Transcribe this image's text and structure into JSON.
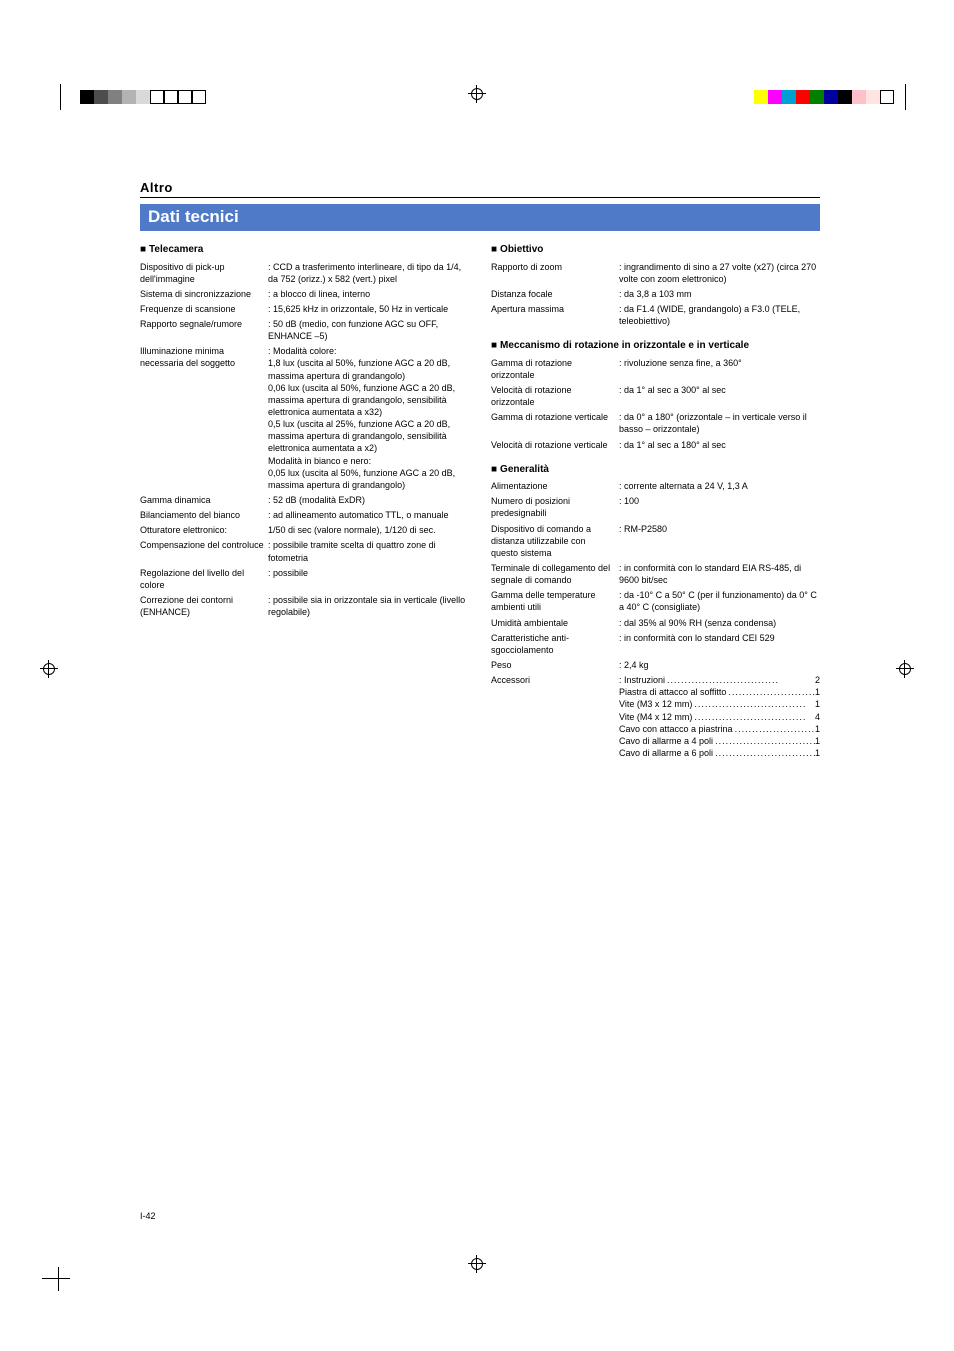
{
  "breadcrumb": "Altro",
  "title": "Dati tecnici",
  "page_number": "I-42",
  "top_left_marks": [
    "#000000",
    "#4d4d4d",
    "#808080",
    "#b3b3b3",
    "#d9d9d9",
    "#ffffff",
    "#ffffff",
    "#ffffff",
    "#ffffff"
  ],
  "top_right_marks": [
    "#ffff00",
    "#ff00ff",
    "#00a0d2",
    "#ff0000",
    "#008000",
    "#0000a0",
    "#000000",
    "#ffc0cb",
    "#ffe4e1",
    "#ffffff"
  ],
  "sections": {
    "telecamera": {
      "head": "Telecamera",
      "rows": [
        {
          "label": "Dispositivo di pick-up dell'immagine",
          "value": "CCD a trasferimento interlineare, di tipo da 1/4, da 752 (orizz.) x 582 (vert.) pixel"
        },
        {
          "label": "Sistema di sincronizzazione",
          "value": "a blocco di linea, interno"
        },
        {
          "label": "Frequenze di scansione",
          "value": "15,625 kHz in orizzontale, 50 Hz in verticale"
        },
        {
          "label": "Rapporto segnale/rumore",
          "value": "50 dB (medio, con funzione AGC su OFF, ENHANCE –5)"
        },
        {
          "label": "Illuminazione minima necessaria del soggetto",
          "value": "Modalità colore:\n1,8 lux (uscita al 50%, funzione AGC a 20 dB, massima apertura di grandangolo)\n0,06 lux (uscita al 50%, funzione AGC a 20 dB, massima apertura di grandangolo, sensibilità elettronica aumentata a x32)\n0,5 lux  (uscita al 25%, funzione AGC a 20 dB, massima apertura di grandangolo, sensibilità elettronica aumentata a x2)\nModalità in bianco e nero:\n0,05 lux (uscita al 50%, funzione AGC a 20 dB, massima apertura di grandangolo)"
        },
        {
          "label": "Gamma dinamica",
          "value": "52 dB (modalità ExDR)"
        },
        {
          "label": "Bilanciamento del bianco",
          "value": "ad allineamento automatico TTL, o manuale"
        },
        {
          "label": "Otturatore elettronico:",
          "value": "1/50 di sec (valore normale), 1/120 di sec.",
          "no_colon": true
        },
        {
          "label": "Compensazione del controluce",
          "value": "possibile tramite scelta di quattro zone di fotometria"
        },
        {
          "label": "Regolazione del livello del colore",
          "value": "possibile"
        },
        {
          "label": "Correzione dei contorni (ENHANCE)",
          "value": "possibile sia in orizzontale sia in verticale (livello regolabile)"
        }
      ]
    },
    "obiettivo": {
      "head": "Obiettivo",
      "rows": [
        {
          "label": "Rapporto di zoom",
          "value": "ingrandimento di sino a 27 volte (x27) (circa 270 volte con zoom elettronico)"
        },
        {
          "label": "Distanza focale",
          "value": "da 3,8 a 103 mm"
        },
        {
          "label": "Apertura massima",
          "value": "da F1.4 (WIDE, grandangolo) a F3.0 (TELE, teleobiettivo)"
        }
      ]
    },
    "meccanismo": {
      "head": "Meccanismo di rotazione in orizzontale e in verticale",
      "rows": [
        {
          "label": "Gamma di rotazione orizzontale",
          "value": "rivoluzione senza fine, a 360°"
        },
        {
          "label": "Velocità di rotazione orizzontale",
          "value": "da 1° al sec a 300° al sec"
        },
        {
          "label": "Gamma di rotazione verticale",
          "value": "da 0° a 180° (orizzontale – in verticale verso il basso – orizzontale)"
        },
        {
          "label": "Velocità di rotazione verticale",
          "value": "da 1° al sec a 180° al sec"
        }
      ]
    },
    "generalita": {
      "head": "Generalità",
      "rows": [
        {
          "label": "Alimentazione",
          "value": "corrente alternata a 24 V, 1,3 A"
        },
        {
          "label": "Numero di posizioni predesignabili",
          "value": "100"
        },
        {
          "label": "Dispositivo di comando a distanza utilizzabile con questo sistema",
          "value": "RM-P2580"
        },
        {
          "label": "Terminale di collegamento del segnale di comando",
          "value": "in conformità con lo standard EIA RS-485, di 9600 bit/sec"
        },
        {
          "label": "Gamma delle temperature ambienti utili",
          "value": "da -10° C a 50° C (per il funzionamento) da 0° C a 40° C (consigliate)"
        },
        {
          "label": "Umidità ambientale",
          "value": "dal 35% al 90% RH (senza condensa)"
        },
        {
          "label": "Caratteristiche anti-sgocciolamento",
          "value": "in conformità con lo standard CEI 529"
        },
        {
          "label": "Peso",
          "value": "2,4 kg"
        }
      ],
      "accessories_label": "Accessori",
      "accessories": [
        {
          "name": "Instruzioni",
          "qty": "2"
        },
        {
          "name": "Piastra di attacco al soffitto",
          "qty": "1"
        },
        {
          "name": "Vite (M3 x 12 mm)",
          "qty": "1"
        },
        {
          "name": "Vite (M4 x 12 mm)",
          "qty": "4"
        },
        {
          "name": "Cavo con attacco a piastrina",
          "qty": "1"
        },
        {
          "name": "Cavo di allarme a 4 poli",
          "qty": "1"
        },
        {
          "name": "Cavo di allarme a 6 poli",
          "qty": "1"
        }
      ]
    }
  }
}
